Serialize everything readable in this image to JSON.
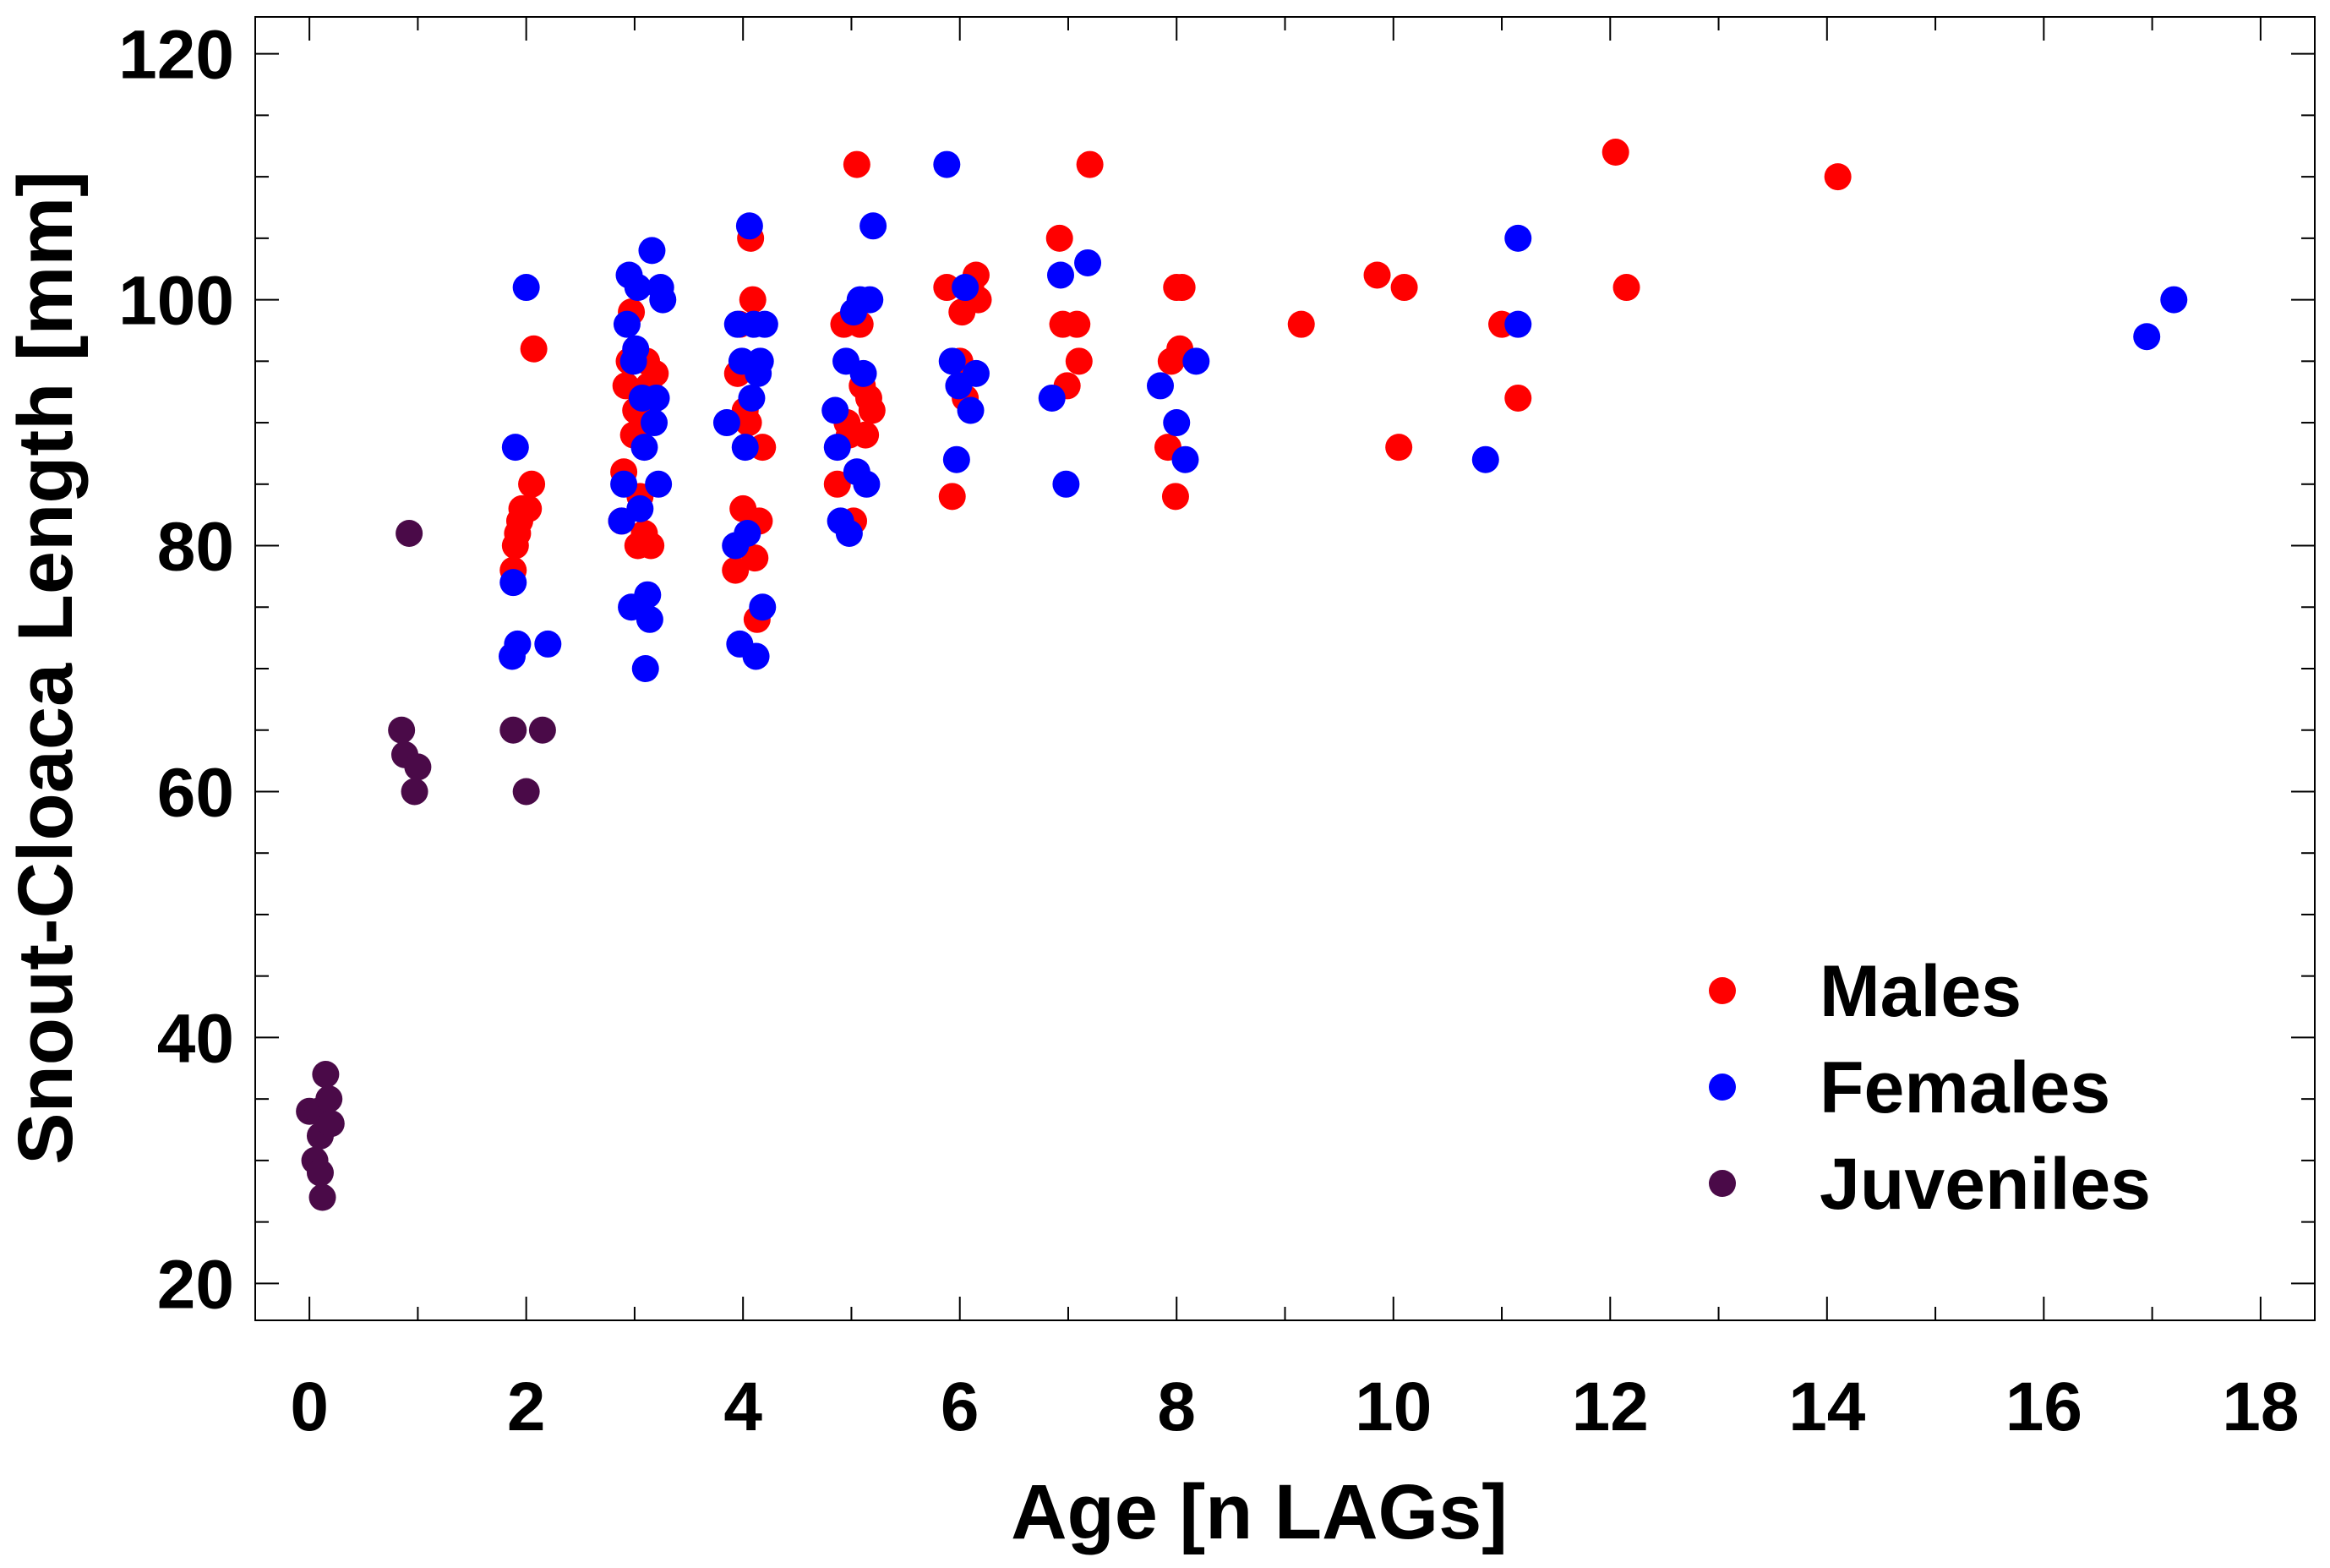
{
  "chart_data": {
    "type": "scatter",
    "title": "",
    "xlabel": "Age [n LAGs]",
    "ylabel": "Snout-Cloaca Length [mm]",
    "xlim": [
      -0.5,
      18.5
    ],
    "ylim": [
      17,
      123
    ],
    "xticks": [
      0,
      2,
      4,
      6,
      8,
      10,
      12,
      14,
      16,
      18
    ],
    "yticks": [
      20,
      40,
      60,
      80,
      100,
      120
    ],
    "legend_position": "bottom-right",
    "series": [
      {
        "name": "Males",
        "color": "#ff0000",
        "points": [
          [
            1.88,
            78
          ],
          [
            1.9,
            80
          ],
          [
            1.92,
            81
          ],
          [
            1.94,
            82
          ],
          [
            1.96,
            83
          ],
          [
            2.02,
            83
          ],
          [
            2.05,
            85
          ],
          [
            2.07,
            96
          ],
          [
            2.88,
            82
          ],
          [
            2.9,
            86
          ],
          [
            2.92,
            93
          ],
          [
            2.95,
            95
          ],
          [
            2.97,
            99
          ],
          [
            2.99,
            89
          ],
          [
            3.01,
            91
          ],
          [
            3.03,
            80
          ],
          [
            3.05,
            84
          ],
          [
            3.07,
            90
          ],
          [
            3.09,
            81
          ],
          [
            3.11,
            95
          ],
          [
            3.13,
            93
          ],
          [
            3.15,
            80
          ],
          [
            3.17,
            92
          ],
          [
            3.19,
            94
          ],
          [
            3.93,
            78
          ],
          [
            3.95,
            94
          ],
          [
            3.97,
            98
          ],
          [
            4.0,
            83
          ],
          [
            4.02,
            91
          ],
          [
            4.05,
            90
          ],
          [
            4.07,
            105
          ],
          [
            4.09,
            100
          ],
          [
            4.11,
            79
          ],
          [
            4.13,
            74
          ],
          [
            4.15,
            82
          ],
          [
            4.18,
            88
          ],
          [
            4.87,
            85
          ],
          [
            4.93,
            98
          ],
          [
            4.96,
            90
          ],
          [
            4.98,
            89
          ],
          [
            5.02,
            82
          ],
          [
            5.05,
            111
          ],
          [
            5.08,
            98
          ],
          [
            5.1,
            93
          ],
          [
            5.13,
            89
          ],
          [
            5.16,
            92
          ],
          [
            5.19,
            91
          ],
          [
            5.88,
            101
          ],
          [
            5.93,
            84
          ],
          [
            6.0,
            95
          ],
          [
            6.02,
            99
          ],
          [
            6.05,
            92
          ],
          [
            6.1,
            101
          ],
          [
            6.15,
            102
          ],
          [
            6.17,
            100
          ],
          [
            6.92,
            105
          ],
          [
            6.95,
            98
          ],
          [
            6.99,
            93
          ],
          [
            7.08,
            98
          ],
          [
            7.1,
            95
          ],
          [
            7.2,
            111
          ],
          [
            7.92,
            88
          ],
          [
            7.95,
            95
          ],
          [
            7.99,
            84
          ],
          [
            8.0,
            101
          ],
          [
            8.03,
            96
          ],
          [
            8.05,
            101
          ],
          [
            9.15,
            98
          ],
          [
            9.85,
            102
          ],
          [
            10.05,
            88
          ],
          [
            10.1,
            101
          ],
          [
            11.0,
            98
          ],
          [
            11.15,
            92
          ],
          [
            12.05,
            112
          ],
          [
            12.15,
            101
          ],
          [
            14.1,
            110
          ]
        ]
      },
      {
        "name": "Females",
        "color": "#0000ff",
        "points": [
          [
            1.87,
            71
          ],
          [
            1.88,
            77
          ],
          [
            1.9,
            88
          ],
          [
            1.92,
            72
          ],
          [
            2.0,
            101
          ],
          [
            2.2,
            72
          ],
          [
            2.88,
            82
          ],
          [
            2.9,
            85
          ],
          [
            2.93,
            98
          ],
          [
            2.95,
            102
          ],
          [
            2.97,
            75
          ],
          [
            2.99,
            95
          ],
          [
            3.01,
            96
          ],
          [
            3.03,
            101
          ],
          [
            3.05,
            83
          ],
          [
            3.07,
            92
          ],
          [
            3.09,
            88
          ],
          [
            3.1,
            70
          ],
          [
            3.12,
            76
          ],
          [
            3.14,
            74
          ],
          [
            3.16,
            104
          ],
          [
            3.18,
            90
          ],
          [
            3.2,
            92
          ],
          [
            3.22,
            85
          ],
          [
            3.24,
            101
          ],
          [
            3.26,
            100
          ],
          [
            3.85,
            90
          ],
          [
            3.93,
            80
          ],
          [
            3.95,
            98
          ],
          [
            3.97,
            72
          ],
          [
            3.99,
            95
          ],
          [
            4.02,
            88
          ],
          [
            4.04,
            81
          ],
          [
            4.06,
            106
          ],
          [
            4.08,
            92
          ],
          [
            4.1,
            98
          ],
          [
            4.12,
            71
          ],
          [
            4.14,
            94
          ],
          [
            4.16,
            95
          ],
          [
            4.18,
            75
          ],
          [
            4.2,
            98
          ],
          [
            4.85,
            91
          ],
          [
            4.87,
            88
          ],
          [
            4.9,
            82
          ],
          [
            4.95,
            95
          ],
          [
            4.98,
            81
          ],
          [
            5.02,
            99
          ],
          [
            5.05,
            86
          ],
          [
            5.08,
            100
          ],
          [
            5.11,
            94
          ],
          [
            5.14,
            85
          ],
          [
            5.17,
            100
          ],
          [
            5.2,
            106
          ],
          [
            5.88,
            111
          ],
          [
            5.93,
            95
          ],
          [
            5.97,
            87
          ],
          [
            5.99,
            93
          ],
          [
            6.05,
            101
          ],
          [
            6.1,
            91
          ],
          [
            6.15,
            94
          ],
          [
            6.85,
            92
          ],
          [
            6.93,
            102
          ],
          [
            6.98,
            85
          ],
          [
            7.18,
            103
          ],
          [
            7.85,
            93
          ],
          [
            8.0,
            90
          ],
          [
            8.08,
            87
          ],
          [
            8.18,
            95
          ],
          [
            10.85,
            87
          ],
          [
            11.15,
            105
          ],
          [
            11.15,
            98
          ],
          [
            16.95,
            97
          ],
          [
            17.2,
            100
          ]
        ]
      },
      {
        "name": "Juveniles",
        "color": "#4a0a48",
        "points": [
          [
            0.0,
            34
          ],
          [
            0.05,
            30
          ],
          [
            0.08,
            34
          ],
          [
            0.1,
            32
          ],
          [
            0.1,
            29
          ],
          [
            0.12,
            27
          ],
          [
            0.15,
            37
          ],
          [
            0.18,
            35
          ],
          [
            0.2,
            33
          ],
          [
            0.85,
            65
          ],
          [
            0.88,
            63
          ],
          [
            0.92,
            81
          ],
          [
            0.97,
            60
          ],
          [
            1.0,
            62
          ],
          [
            1.88,
            65
          ],
          [
            2.0,
            60
          ],
          [
            2.15,
            65
          ]
        ]
      }
    ]
  }
}
